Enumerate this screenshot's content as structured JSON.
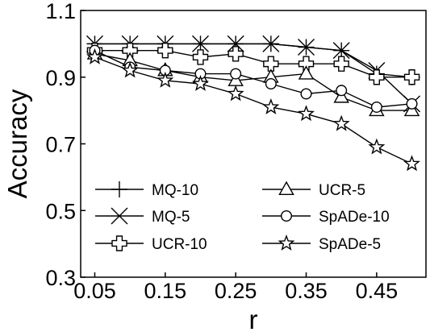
{
  "chart_data": {
    "type": "line",
    "title": "",
    "xlabel": "r",
    "ylabel": "Accuracy",
    "xlim": [
      0.03,
      0.52
    ],
    "ylim": [
      0.3,
      1.1
    ],
    "xticks": [
      0.05,
      0.15,
      0.25,
      0.35,
      0.45
    ],
    "xtick_labels": [
      "0.05",
      "0.15",
      "0.25",
      "0.35",
      "0.45"
    ],
    "yticks": [
      0.3,
      0.5,
      0.7,
      0.9,
      1.1
    ],
    "ytick_labels": [
      "0.3",
      "0.5",
      "0.7",
      "0.9",
      "1.1"
    ],
    "grid": false,
    "legend_position": "bottom-left, two columns",
    "x": [
      0.05,
      0.1,
      0.15,
      0.2,
      0.25,
      0.3,
      0.35,
      0.4,
      0.45,
      0.5
    ],
    "series": [
      {
        "name": "MQ-10",
        "marker": "plus",
        "values": [
          1.0,
          1.0,
          1.0,
          1.0,
          1.0,
          1.0,
          0.99,
          0.98,
          0.91,
          0.9
        ]
      },
      {
        "name": "MQ-5",
        "marker": "x",
        "values": [
          1.0,
          1.0,
          1.0,
          1.0,
          1.0,
          1.0,
          0.99,
          0.98,
          0.92,
          0.82
        ]
      },
      {
        "name": "UCR-10",
        "marker": "thick-plus",
        "values": [
          0.98,
          0.98,
          0.98,
          0.96,
          0.97,
          0.94,
          0.94,
          0.94,
          0.9,
          0.9
        ]
      },
      {
        "name": "UCR-5",
        "marker": "triangle",
        "values": [
          0.97,
          0.95,
          0.92,
          0.9,
          0.89,
          0.9,
          0.91,
          0.84,
          0.8,
          0.8
        ]
      },
      {
        "name": "SpADe-10",
        "marker": "circle",
        "values": [
          0.98,
          0.93,
          0.92,
          0.91,
          0.91,
          0.88,
          0.85,
          0.86,
          0.81,
          0.82
        ]
      },
      {
        "name": "SpADe-5",
        "marker": "star",
        "values": [
          0.96,
          0.92,
          0.89,
          0.88,
          0.85,
          0.81,
          0.79,
          0.76,
          0.69,
          0.64
        ]
      }
    ]
  }
}
